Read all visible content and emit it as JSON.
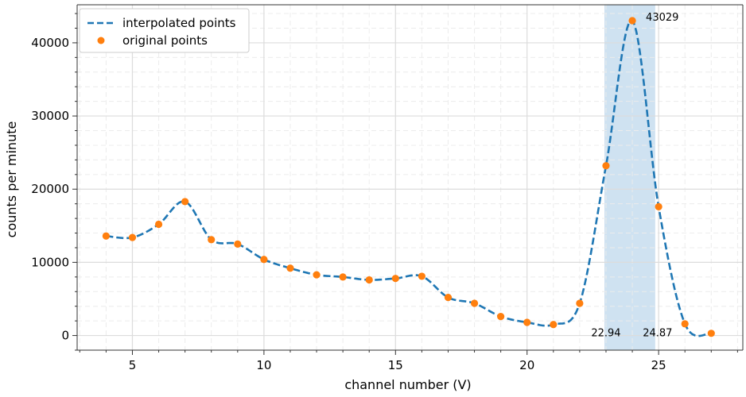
{
  "chart_data": {
    "type": "line",
    "xlabel": "channel number (V)",
    "ylabel": "counts per minute",
    "xlim": [
      2.9,
      28.2
    ],
    "ylim": [
      -2000,
      45200
    ],
    "xticks": [
      5,
      10,
      15,
      20,
      25
    ],
    "yticks": [
      0,
      10000,
      20000,
      30000,
      40000
    ],
    "grid": true,
    "legend_position": "top-left",
    "series": [
      {
        "name": "interpolated points",
        "style": "dashed-line",
        "color": "#1f77b4",
        "x": [
          4,
          5,
          6,
          7,
          8,
          9,
          10,
          11,
          12,
          13,
          14,
          15,
          16,
          17,
          18,
          19,
          20,
          21,
          22,
          23,
          24,
          25,
          26,
          27
        ],
        "y": [
          13600,
          13400,
          15200,
          18300,
          13100,
          12500,
          10400,
          9200,
          8300,
          8000,
          7600,
          7800,
          8100,
          5200,
          4400,
          2600,
          1800,
          1500,
          4400,
          23200,
          43029,
          17600,
          1600,
          300
        ]
      },
      {
        "name": "original points",
        "style": "markers",
        "color": "#ff7f0e",
        "x": [
          4,
          5,
          6,
          7,
          8,
          9,
          10,
          11,
          12,
          13,
          14,
          15,
          16,
          17,
          18,
          19,
          20,
          21,
          22,
          23,
          24,
          25,
          26,
          27
        ],
        "y": [
          13600,
          13400,
          15200,
          18300,
          13100,
          12500,
          10400,
          9200,
          8300,
          8000,
          7600,
          7800,
          8100,
          5200,
          4400,
          2600,
          1800,
          1500,
          4400,
          23200,
          43029,
          17600,
          1600,
          300
        ]
      }
    ],
    "shaded_region": {
      "x_start": 22.94,
      "x_end": 24.87,
      "color": "#cfe2f1"
    },
    "annotations": [
      {
        "text": "43029",
        "x": 24,
        "y": 43029
      },
      {
        "text": "22.94",
        "x": 22.94,
        "y": 0
      },
      {
        "text": "24.87",
        "x": 24.87,
        "y": 0
      }
    ]
  }
}
